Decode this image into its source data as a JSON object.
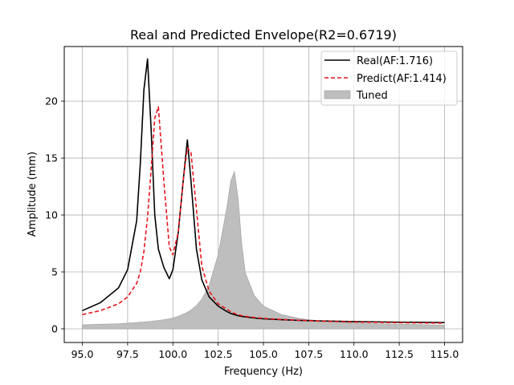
{
  "chart_data": {
    "type": "line",
    "title": "Real and Predicted Envelope(R2=0.6719)",
    "xlabel": "Frequency (Hz)",
    "ylabel": "Amplitude (mm)",
    "xlim": [
      94.0,
      116.0
    ],
    "ylim": [
      -1.2,
      24.8
    ],
    "xticks": [
      "95.0",
      "97.5",
      "100.0",
      "102.5",
      "105.0",
      "107.5",
      "110.0",
      "112.5",
      "115.0"
    ],
    "yticks": [
      "0",
      "5",
      "10",
      "15",
      "20"
    ],
    "grid": true,
    "legend_position": "top-right",
    "x": [
      95.0,
      96.0,
      97.0,
      97.5,
      98.0,
      98.2,
      98.4,
      98.6,
      98.8,
      99.0,
      99.2,
      99.5,
      99.8,
      100.0,
      100.3,
      100.6,
      100.8,
      101.0,
      101.3,
      101.6,
      102.0,
      102.5,
      103.0,
      103.2,
      103.4,
      103.6,
      103.8,
      104.0,
      104.5,
      105.0,
      106.0,
      107.0,
      108.0,
      110.0,
      112.0,
      115.0
    ],
    "series": [
      {
        "name": "Real(AF:1.716)",
        "kind": "line",
        "color": "#000000",
        "values": [
          1.6,
          2.3,
          3.6,
          5.2,
          9.5,
          14.5,
          21.0,
          23.7,
          17.5,
          10.0,
          7.0,
          5.4,
          4.4,
          5.2,
          8.5,
          13.5,
          16.6,
          13.0,
          7.0,
          4.3,
          2.8,
          2.0,
          1.5,
          1.35,
          1.25,
          1.15,
          1.1,
          1.05,
          0.95,
          0.88,
          0.8,
          0.74,
          0.7,
          0.64,
          0.6,
          0.55
        ]
      },
      {
        "name": "Predict(AF:1.414)",
        "kind": "dashed-line",
        "color": "#e8141c",
        "values": [
          1.25,
          1.6,
          2.2,
          2.8,
          4.0,
          5.0,
          6.8,
          9.8,
          14.0,
          18.5,
          19.5,
          13.0,
          7.2,
          6.5,
          8.5,
          13.5,
          15.9,
          15.5,
          10.5,
          5.5,
          3.3,
          2.2,
          1.7,
          1.5,
          1.35,
          1.25,
          1.15,
          1.1,
          1.0,
          0.92,
          0.82,
          0.75,
          0.68,
          0.6,
          0.55,
          0.5
        ]
      },
      {
        "name": "Tuned",
        "kind": "area",
        "color": "#bebebe",
        "values": [
          0.35,
          0.4,
          0.45,
          0.5,
          0.55,
          0.58,
          0.6,
          0.63,
          0.66,
          0.7,
          0.73,
          0.8,
          0.88,
          0.95,
          1.1,
          1.3,
          1.45,
          1.65,
          2.05,
          2.6,
          3.8,
          6.5,
          10.8,
          13.0,
          13.8,
          11.5,
          7.5,
          4.9,
          2.9,
          2.0,
          1.25,
          0.9,
          0.72,
          0.52,
          0.42,
          0.32
        ]
      }
    ]
  }
}
